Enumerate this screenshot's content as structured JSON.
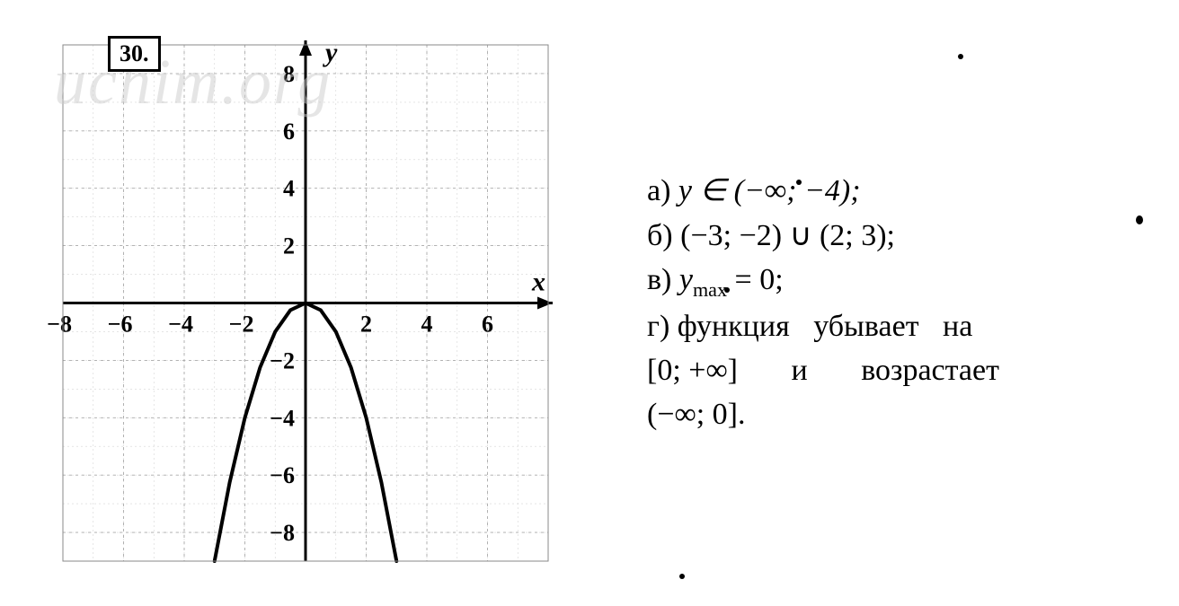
{
  "problem_number": "30.",
  "watermark_text": "uchim.org",
  "graph": {
    "type": "parabola",
    "function_type": "y = -x^2",
    "xlim": [
      -8,
      8
    ],
    "ylim": [
      -9,
      9
    ],
    "xtick_step": 2,
    "ytick_step": 2,
    "xticks": [
      -8,
      -6,
      -4,
      -2,
      2,
      4,
      6
    ],
    "yticks": [
      -8,
      -6,
      -4,
      -2,
      2,
      4,
      6,
      8
    ],
    "x_axis_label": "x",
    "y_axis_label": "y",
    "grid_major_color": "#aaaaaa",
    "grid_minor_color": "#d5d5d5",
    "axis_color": "#000000",
    "curve_color": "#000000",
    "curve_width": 4,
    "tick_fontsize": 26,
    "axis_label_fontsize": 30,
    "background_color": "#ffffff",
    "curve_points": [
      [
        -3.0,
        -9.0
      ],
      [
        -2.5,
        -6.25
      ],
      [
        -2.0,
        -4.0
      ],
      [
        -1.5,
        -2.25
      ],
      [
        -1.0,
        -1.0
      ],
      [
        -0.5,
        -0.25
      ],
      [
        0,
        0
      ],
      [
        0.5,
        -0.25
      ],
      [
        1.0,
        -1.0
      ],
      [
        1.5,
        -2.25
      ],
      [
        2.0,
        -4.0
      ],
      [
        2.5,
        -6.25
      ],
      [
        3.0,
        -9.0
      ]
    ]
  },
  "answers": {
    "a_label": "а)",
    "a_text": "y ∈ (−∞; −4);",
    "b_label": "б)",
    "b_text": "(−3; −2) ∪ (2; 3);",
    "c_label": "в)",
    "c_prefix": "y",
    "c_sub": "max",
    "c_rest": " = 0;",
    "d_label": "г)",
    "d_text1": "функция убывает на",
    "d_interval1": "[0; +∞]",
    "d_word1": "и",
    "d_word2": "возрастает",
    "d_interval2": "(−∞; 0]."
  }
}
